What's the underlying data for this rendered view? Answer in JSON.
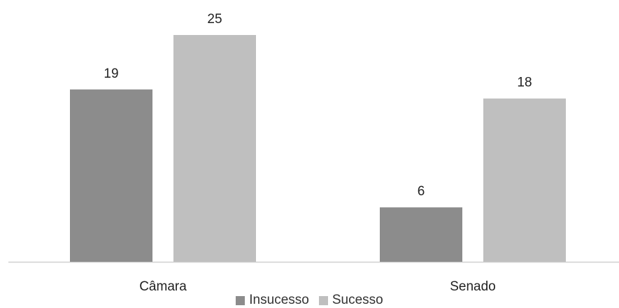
{
  "chart_data": {
    "type": "bar",
    "categories": [
      "Câmara",
      "Senado"
    ],
    "series": [
      {
        "name": "Insucesso",
        "values": [
          19,
          6
        ],
        "color": "#8c8c8c"
      },
      {
        "name": "Sucesso",
        "values": [
          25,
          18
        ],
        "color": "#bfbfbf"
      }
    ],
    "ylim": [
      0,
      25
    ],
    "grid": false,
    "legend_position": "bottom",
    "data_labels": true,
    "axis_color": "#d0d0d0"
  }
}
